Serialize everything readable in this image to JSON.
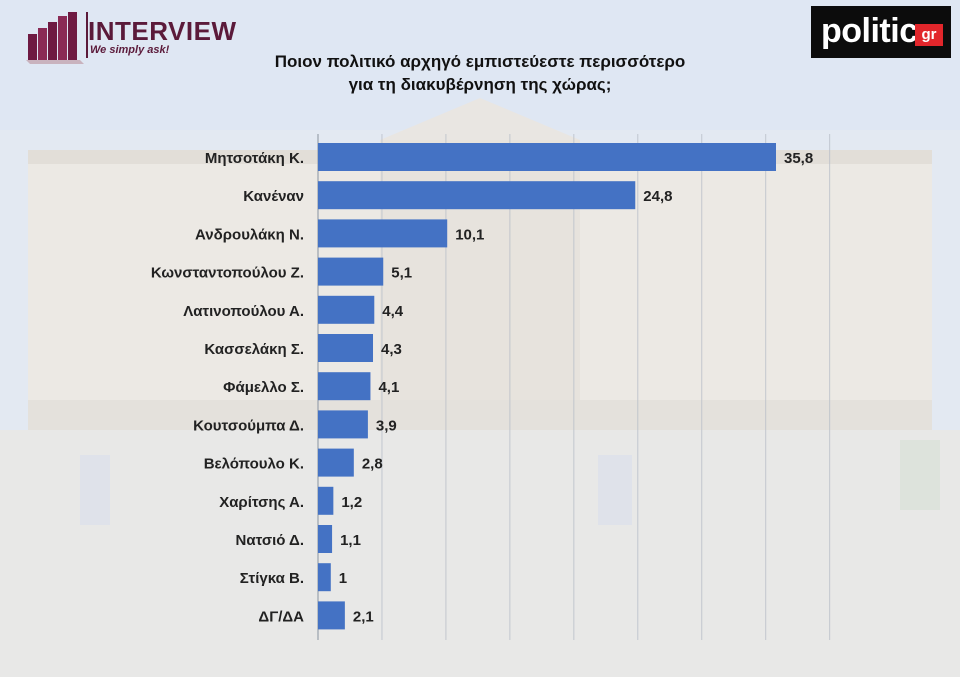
{
  "header": {
    "left_logo_name": "INTERVIEW",
    "left_logo_tagline": "We simply ask!",
    "right_logo_name": "politic",
    "right_logo_badge": "gr"
  },
  "chart_data": {
    "type": "bar",
    "orientation": "horizontal",
    "title_lines": [
      "Ποιον πολιτικό αρχηγό εμπιστεύεστε περισσότερο",
      "για τη διακυβέρνηση της χώρας;"
    ],
    "categories": [
      "Μητσοτάκη Κ.",
      "Κανέναν",
      "Ανδρουλάκη Ν.",
      "Κωνσταντοπούλου Ζ.",
      "Λατινοπούλου Α.",
      "Κασσελάκη Σ.",
      "Φάμελλο Σ.",
      "Κουτσούμπα Δ.",
      "Βελόπουλο Κ.",
      "Χαρίτσης Α.",
      "Νατσιό Δ.",
      "Στίγκα Β.",
      "ΔΓ/ΔΑ"
    ],
    "values": [
      35.8,
      24.8,
      10.1,
      5.1,
      4.4,
      4.3,
      4.1,
      3.9,
      2.8,
      1.2,
      1.1,
      1,
      2.1
    ],
    "value_labels": [
      "35,8",
      "24,8",
      "10,1",
      "5,1",
      "4,4",
      "4,3",
      "4,1",
      "3,9",
      "2,8",
      "1,2",
      "1,1",
      "1",
      "2,1"
    ],
    "xlim": [
      0,
      40
    ],
    "grid": true,
    "bar_color": "#4472c4"
  }
}
